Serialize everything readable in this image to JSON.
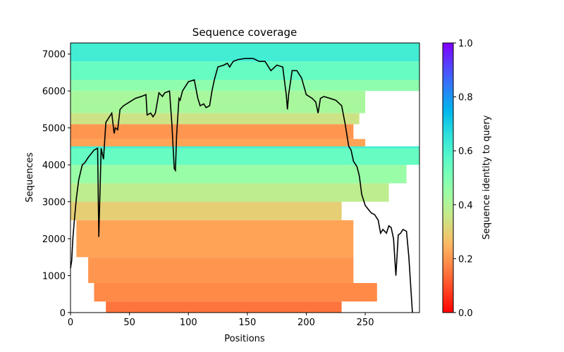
{
  "chart_data": {
    "type": "coverage",
    "title": "Sequence coverage",
    "xlabel": "Positions",
    "ylabel": "Sequences",
    "colorbar_label": "Sequence identity to query",
    "xlim": [
      0,
      296
    ],
    "ylim": [
      0,
      7300
    ],
    "xticks": [
      0,
      50,
      100,
      150,
      200,
      250
    ],
    "yticks": [
      0,
      1000,
      2000,
      3000,
      4000,
      5000,
      6000,
      7000
    ],
    "clim": [
      0,
      1
    ],
    "cticks": [
      {
        "value": 0,
        "label": "0.0"
      },
      0.2,
      0.4,
      0.6,
      0.8,
      {
        "value": 1,
        "label": "1.0"
      }
    ],
    "color": "#000000",
    "x": [
      0,
      1,
      2,
      3,
      5,
      7,
      10,
      12,
      15,
      20,
      23,
      24,
      26,
      28,
      30,
      33,
      35,
      37,
      38,
      40,
      42,
      45,
      50,
      55,
      60,
      64,
      65,
      68,
      70,
      72,
      75,
      78,
      80,
      84,
      86,
      88,
      89,
      90,
      92,
      93,
      95,
      100,
      105,
      108,
      110,
      113,
      115,
      118,
      120,
      122,
      125,
      130,
      133,
      135,
      138,
      142,
      148,
      155,
      160,
      165,
      170,
      175,
      180,
      183,
      184,
      185,
      188,
      192,
      196,
      200,
      205,
      208,
      210,
      212,
      215,
      220,
      225,
      230,
      233,
      236,
      238,
      240,
      243,
      245,
      247,
      250,
      255,
      258,
      261,
      263,
      265,
      268,
      270,
      272,
      274,
      276,
      278,
      280,
      282,
      285,
      287,
      289,
      290
    ],
    "values": [
      1200,
      1400,
      2000,
      2400,
      3100,
      3600,
      4000,
      4050,
      4200,
      4400,
      4450,
      2050,
      4450,
      4150,
      5150,
      5300,
      5400,
      4850,
      5000,
      4950,
      5500,
      5600,
      5700,
      5800,
      5850,
      5900,
      5350,
      5400,
      5300,
      5400,
      5950,
      5850,
      5950,
      6000,
      5100,
      3900,
      3850,
      4800,
      5800,
      5750,
      6000,
      6250,
      6300,
      5800,
      5600,
      5650,
      5550,
      5600,
      6000,
      6300,
      6650,
      6700,
      6750,
      6650,
      6800,
      6850,
      6880,
      6880,
      6800,
      6800,
      6550,
      6700,
      6650,
      5900,
      5500,
      5900,
      6550,
      6550,
      6350,
      5900,
      5800,
      5700,
      5400,
      5800,
      5850,
      5800,
      5750,
      5600,
      5100,
      4500,
      4400,
      4100,
      3950,
      3700,
      3200,
      2900,
      2700,
      2650,
      2500,
      2150,
      2250,
      2150,
      2350,
      2300,
      2000,
      1000,
      2100,
      2150,
      2250,
      2200,
      1500,
      500,
      0
    ],
    "blocks": [
      {
        "rows": [
          0,
          300
        ],
        "positions": [
          30,
          230
        ],
        "identity": 0.15
      },
      {
        "rows": [
          300,
          800
        ],
        "positions": [
          20,
          260
        ],
        "identity": 0.18
      },
      {
        "rows": [
          800,
          1500
        ],
        "positions": [
          15,
          240
        ],
        "identity": 0.2
      },
      {
        "rows": [
          1500,
          2500
        ],
        "positions": [
          5,
          240
        ],
        "identity": 0.22
      },
      {
        "rows": [
          2500,
          3000
        ],
        "positions": [
          0,
          230
        ],
        "identity": 0.3
      },
      {
        "rows": [
          3000,
          3500
        ],
        "positions": [
          0,
          270
        ],
        "identity": 0.38
      },
      {
        "rows": [
          3500,
          4000
        ],
        "positions": [
          0,
          285
        ],
        "identity": 0.45
      },
      {
        "rows": [
          4000,
          4450
        ],
        "positions": [
          0,
          296
        ],
        "identity": 0.55
      },
      {
        "rows": [
          4450,
          4500
        ],
        "positions": [
          0,
          296
        ],
        "identity": 0.62
      },
      {
        "rows": [
          4500,
          4700
        ],
        "positions": [
          0,
          250
        ],
        "identity": 0.22
      },
      {
        "rows": [
          4700,
          5100
        ],
        "positions": [
          0,
          240
        ],
        "identity": 0.2
      },
      {
        "rows": [
          5100,
          5400
        ],
        "positions": [
          0,
          245
        ],
        "identity": 0.35
      },
      {
        "rows": [
          5400,
          6000
        ],
        "positions": [
          0,
          250
        ],
        "identity": 0.42
      },
      {
        "rows": [
          6000,
          6300
        ],
        "positions": [
          0,
          296
        ],
        "identity": 0.47
      },
      {
        "rows": [
          6300,
          6800
        ],
        "positions": [
          0,
          296
        ],
        "identity": 0.55
      },
      {
        "rows": [
          6800,
          7300
        ],
        "positions": [
          0,
          296
        ],
        "identity": 0.62
      }
    ]
  }
}
